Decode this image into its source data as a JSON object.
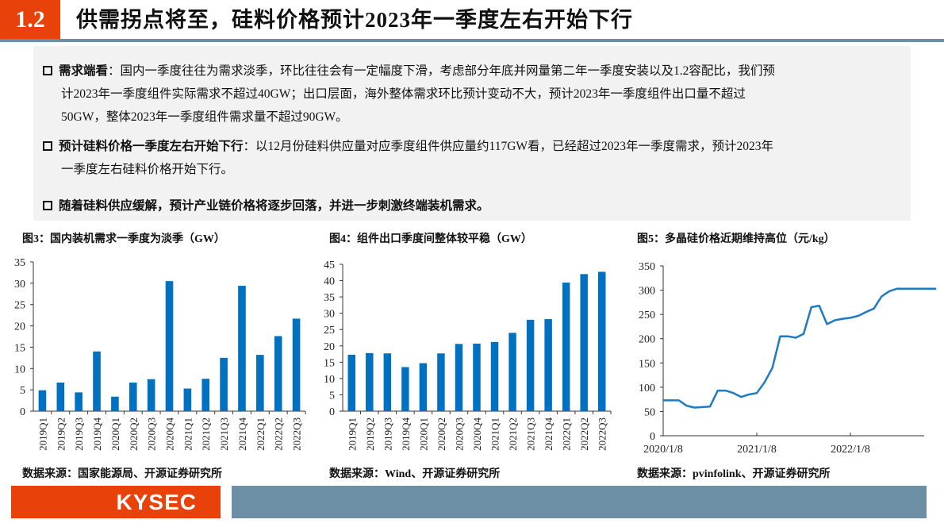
{
  "header": {
    "section_number": "1.2",
    "title": "供需拐点将至，硅料价格预计2023年一季度左右开始下行"
  },
  "bullets": [
    {
      "bold": "需求端看",
      "line1": "：国内一季度往往为需求淡季，环比往往会有一定幅度下滑，考虑部分年底并网量第二年一季度安装以及1.2容配比，我们预",
      "line2": "计2023年一季度组件实际需求不超过40GW；出口层面，海外整体需求环比预计变动不大，预计2023年一季度组件出口量不超过",
      "line3": "50GW，整体2023年一季度组件需求量不超过90GW。"
    },
    {
      "bold": "预计硅料价格一季度左右开始下行",
      "line1": "：以12月份硅料供应量对应季度组件供应量约117GW看，已经超过2023年一季度需求，预计2023年",
      "line2": "一季度左右硅料价格开始下行。"
    },
    {
      "bold": "随着硅料供应缓解，预计产业链价格将逐步回落，并进一步刺激终端装机需求。",
      "line1": ""
    }
  ],
  "figures": [
    {
      "title": "图3：国内装机需求一季度为淡季（GW）",
      "source": "数据来源：国家能源局、开源证券研究所"
    },
    {
      "title": "图4：组件出口季度间整体较平稳（GW）",
      "source": "数据来源：Wind、开源证券研究所"
    },
    {
      "title": "图5：多晶硅价格近期维持高位（元/kg）",
      "source": "数据来源：pvinfolink、开源证券研究所"
    }
  ],
  "footer": {
    "logo_text": "KYSEC"
  },
  "colors": {
    "accent_orange": "#e8420a",
    "rule_blue": "#6d8fa5",
    "bar_blue": "#0070c0",
    "line_blue": "#1f7ac4",
    "textbox_bg": "#f2f2f2"
  },
  "chart_data": [
    {
      "type": "bar",
      "title": "图3：国内装机需求一季度为淡季（GW）",
      "xlabel": "",
      "ylabel": "GW",
      "categories": [
        "2019Q1",
        "2019Q2",
        "2019Q3",
        "2019Q4",
        "2020Q1",
        "2020Q2",
        "2020Q3",
        "2020Q4",
        "2021Q1",
        "2021Q2",
        "2021Q3",
        "2021Q4",
        "2022Q1",
        "2022Q2",
        "2022Q3"
      ],
      "values": [
        4.9,
        6.7,
        4.4,
        14.0,
        3.4,
        6.7,
        7.5,
        30.5,
        5.3,
        7.6,
        12.5,
        29.4,
        13.2,
        17.6,
        21.7
      ],
      "ylim": [
        0,
        35
      ],
      "yticks": [
        0,
        5,
        10,
        15,
        20,
        25,
        30,
        35
      ],
      "grid": false,
      "legend": "none",
      "source": "数据来源：国家能源局、开源证券研究所"
    },
    {
      "type": "bar",
      "title": "图4：组件出口季度间整体较平稳（GW）",
      "xlabel": "",
      "ylabel": "GW",
      "categories": [
        "2019Q1",
        "2019Q2",
        "2019Q3",
        "2019Q4",
        "2020Q1",
        "2020Q2",
        "2020Q3",
        "2020Q4",
        "2021Q1",
        "2021Q2",
        "2021Q3",
        "2021Q4",
        "2022Q1",
        "2022Q2",
        "2022Q3"
      ],
      "values": [
        17.3,
        17.8,
        17.7,
        13.5,
        14.7,
        17.7,
        20.6,
        20.7,
        21.2,
        24.0,
        28.0,
        28.2,
        39.4,
        42.0,
        42.7
      ],
      "ylim": [
        0,
        45
      ],
      "yticks": [
        0,
        5,
        10,
        15,
        20,
        25,
        30,
        35,
        40,
        45
      ],
      "grid": false,
      "legend": "none",
      "source": "数据来源：Wind、开源证券研究所"
    },
    {
      "type": "line",
      "title": "图5：多晶硅价格近期维持高位（元/kg）",
      "xlabel": "",
      "ylabel": "元/kg",
      "xticks": [
        "2020/1/8",
        "2021/1/8",
        "2022/1/8"
      ],
      "ylim": [
        0,
        350
      ],
      "yticks": [
        0,
        50,
        100,
        150,
        200,
        250,
        300,
        350
      ],
      "series": [
        {
          "name": "多晶硅价格",
          "x": [
            "2020/1",
            "2020/2",
            "2020/3",
            "2020/4",
            "2020/5",
            "2020/6",
            "2020/7",
            "2020/8",
            "2020/9",
            "2020/10",
            "2020/11",
            "2020/12",
            "2021/1",
            "2021/2",
            "2021/3",
            "2021/4",
            "2021/5",
            "2021/6",
            "2021/7",
            "2021/8",
            "2021/9",
            "2021/10",
            "2021/11",
            "2021/12",
            "2022/1",
            "2022/2",
            "2022/3",
            "2022/4",
            "2022/5",
            "2022/6",
            "2022/7",
            "2022/8",
            "2022/9",
            "2022/10",
            "2022/11",
            "2022/12"
          ],
          "values": [
            73,
            73,
            73,
            62,
            58,
            59,
            60,
            93,
            93,
            88,
            80,
            85,
            88,
            110,
            140,
            205,
            205,
            202,
            210,
            265,
            268,
            230,
            238,
            241,
            243,
            247,
            255,
            262,
            287,
            298,
            303,
            303,
            303,
            303,
            303,
            303
          ]
        }
      ],
      "grid": false,
      "legend": "none",
      "source": "数据来源：pvinfolink、开源证券研究所"
    }
  ]
}
